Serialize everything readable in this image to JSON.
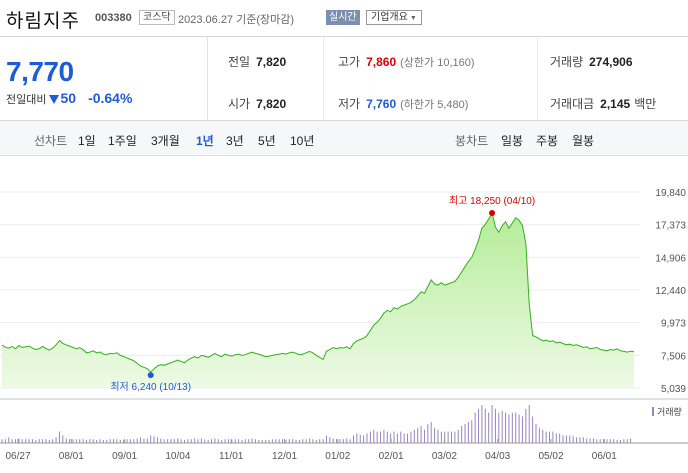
{
  "header": {
    "name": "하림지주",
    "code": "003380",
    "market": "코스닥",
    "date": "2023.06.27 기준(장마감)",
    "realtime": "실시간",
    "company_info": "기업개요"
  },
  "summary": {
    "price": "7,770",
    "change_label": "전일대비",
    "change_value": "50",
    "change_pct": "-0.64%",
    "prev_close_label": "전일",
    "prev_close": "7,820",
    "open_label": "시가",
    "open": "7,820",
    "high_label": "고가",
    "high": "7,860",
    "upper_limit": "(상한가 10,160)",
    "low_label": "저가",
    "low": "7,760",
    "lower_limit": "(하한가 5,480)",
    "volume_label": "거래량",
    "volume": "274,906",
    "amount_label": "거래대금",
    "amount": "2,145",
    "amount_unit": "백만"
  },
  "tabs": {
    "line_label": "선차트",
    "line_periods": [
      "1일",
      "1주일",
      "3개월",
      "1년",
      "3년",
      "5년",
      "10년"
    ],
    "active_period": "1년",
    "candle_label": "봉차트",
    "candle_periods": [
      "일봉",
      "주봉",
      "월봉"
    ]
  },
  "colors": {
    "line": "#33b01a",
    "fill_top": "#b4ec98",
    "fill_bottom": "#eefae6",
    "down": "#1e5bd6",
    "up": "#d60000",
    "volume": "#9486c4"
  },
  "chart_data": {
    "type": "area",
    "ylim": [
      5039,
      19840
    ],
    "y_ticks": [
      "19,840",
      "17,373",
      "14,906",
      "12,440",
      "9,973",
      "7,506",
      "5,039"
    ],
    "x_ticks": [
      "06/27",
      "08/01",
      "09/01",
      "10/04",
      "11/01",
      "12/01",
      "01/02",
      "02/01",
      "03/02",
      "04/03",
      "05/02",
      "06/01"
    ],
    "high_annotation": "최고 18,250 (04/10)",
    "low_annotation": "최저 6,240 (10/13)",
    "volume_legend": "거래량",
    "series": [
      {
        "values": [
          8280,
          8120,
          8050,
          8180,
          8000,
          8250,
          8100,
          8150,
          8200,
          8050,
          7950,
          8000,
          8180,
          8020,
          7900,
          8050,
          8300,
          8620,
          8410,
          8300,
          8200,
          8100,
          8000,
          8100,
          7930,
          7700,
          7750,
          7850,
          7700,
          7760,
          7600,
          7550,
          7650,
          7620,
          7700,
          7500,
          7420,
          7300,
          7200,
          7100,
          6900,
          6700,
          6600,
          6500,
          6240,
          6500,
          6700,
          6800,
          6750,
          6850,
          6950,
          7050,
          7150,
          7050,
          6950,
          7150,
          7300,
          7400,
          7300,
          7500,
          7450,
          7350,
          7500,
          7650,
          7500,
          7400,
          7600,
          7500,
          7450,
          7550,
          7600,
          7500,
          7550,
          7650,
          7750,
          7650,
          7600,
          7500,
          7400,
          7450,
          7500,
          7550,
          7600,
          7650,
          7600,
          7700,
          7750,
          7650,
          7550,
          7600,
          7700,
          7800,
          7700,
          7500,
          7350,
          7200,
          7800,
          7950,
          8100,
          8000,
          8100,
          8050,
          8150,
          8000,
          8400,
          8600,
          8700,
          8800,
          9000,
          9400,
          9800,
          10000,
          10300,
          10700,
          10900,
          10800,
          11100,
          11000,
          11200,
          11300,
          11400,
          11500,
          11700,
          12000,
          12300,
          12200,
          12700,
          13200,
          12900,
          12800,
          13000,
          12800,
          12900,
          13000,
          13100,
          13400,
          13800,
          14200,
          14600,
          14900,
          15500,
          16200,
          17100,
          17400,
          17800,
          18250,
          17200,
          16800,
          17300,
          17600,
          17100,
          17500,
          17900,
          17700,
          17300,
          15900,
          11400,
          9000,
          8900,
          8750,
          8600,
          8650,
          8550,
          8600,
          8450,
          8500,
          8400,
          8300,
          8350,
          8250,
          8300,
          8200,
          8100,
          8150,
          8000,
          8050,
          8100,
          7950,
          7900,
          7850,
          7950,
          7900,
          8000,
          7850,
          7800,
          7750,
          7820,
          7770
        ]
      }
    ],
    "volume_values": [
      0.1,
      0.1,
      0.15,
      0.1,
      0.1,
      0.12,
      0.1,
      0.1,
      0.1,
      0.1,
      0.08,
      0.1,
      0.1,
      0.1,
      0.08,
      0.1,
      0.15,
      0.3,
      0.2,
      0.12,
      0.1,
      0.1,
      0.1,
      0.1,
      0.1,
      0.08,
      0.1,
      0.1,
      0.08,
      0.1,
      0.08,
      0.08,
      0.1,
      0.1,
      0.1,
      0.08,
      0.08,
      0.1,
      0.1,
      0.1,
      0.12,
      0.15,
      0.12,
      0.12,
      0.2,
      0.18,
      0.15,
      0.12,
      0.1,
      0.1,
      0.1,
      0.1,
      0.12,
      0.1,
      0.08,
      0.1,
      0.1,
      0.12,
      0.1,
      0.12,
      0.1,
      0.08,
      0.1,
      0.12,
      0.1,
      0.08,
      0.1,
      0.1,
      0.08,
      0.1,
      0.1,
      0.08,
      0.1,
      0.1,
      0.12,
      0.1,
      0.08,
      0.08,
      0.08,
      0.08,
      0.1,
      0.1,
      0.1,
      0.1,
      0.08,
      0.1,
      0.1,
      0.08,
      0.08,
      0.1,
      0.1,
      0.12,
      0.1,
      0.08,
      0.1,
      0.1,
      0.2,
      0.15,
      0.12,
      0.1,
      0.1,
      0.1,
      0.12,
      0.1,
      0.2,
      0.25,
      0.22,
      0.2,
      0.25,
      0.3,
      0.35,
      0.3,
      0.3,
      0.35,
      0.3,
      0.25,
      0.3,
      0.25,
      0.3,
      0.25,
      0.25,
      0.3,
      0.35,
      0.4,
      0.45,
      0.35,
      0.5,
      0.55,
      0.4,
      0.35,
      0.3,
      0.3,
      0.3,
      0.3,
      0.3,
      0.35,
      0.45,
      0.5,
      0.55,
      0.6,
      0.8,
      0.9,
      1.0,
      0.9,
      0.8,
      1.0,
      0.9,
      0.8,
      0.85,
      0.8,
      0.75,
      0.8,
      0.8,
      0.75,
      0.7,
      0.9,
      1.0,
      0.7,
      0.5,
      0.4,
      0.35,
      0.3,
      0.3,
      0.3,
      0.25,
      0.25,
      0.2,
      0.2,
      0.2,
      0.18,
      0.15,
      0.15,
      0.15,
      0.12,
      0.12,
      0.12,
      0.1,
      0.1,
      0.1,
      0.1,
      0.1,
      0.1,
      0.08,
      0.08,
      0.1,
      0.1,
      0.12
    ]
  }
}
